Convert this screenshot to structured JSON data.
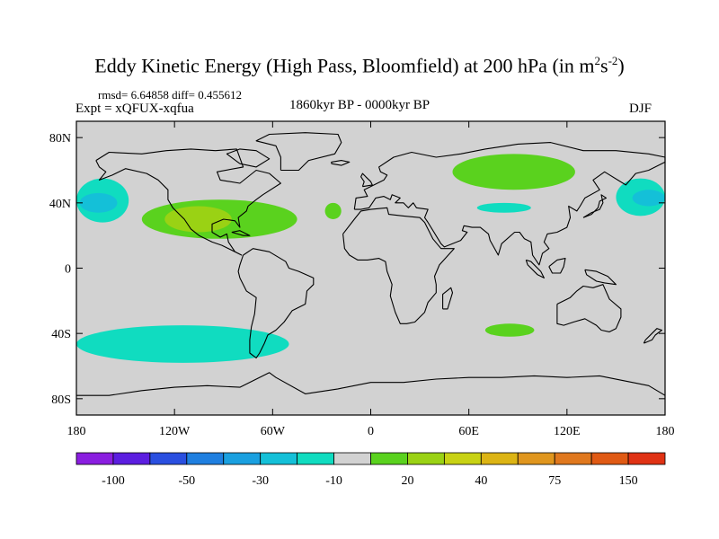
{
  "header": {
    "title_main": "Eddy Kinetic Energy (High Pass, Bloomfield) at 200 hPa (in m",
    "title_sup1": "2",
    "title_mid": "s",
    "title_sup2": "-2",
    "title_end": ")",
    "stats": "rmsd= 6.64858 diff= 0.455612",
    "expt": "Expt = xQFUX-xqfua",
    "period": "1860kyr BP - 0000kyr BP",
    "season": "DJF"
  },
  "chart_data": {
    "type": "heatmap",
    "projection": "cylindrical equidistant",
    "variable": "Eddy Kinetic Energy difference",
    "level": "200 hPa",
    "units": "m2s-2",
    "xlim": [
      -180,
      180
    ],
    "ylim": [
      -90,
      90
    ],
    "x_ticks": [
      {
        "value": -180,
        "label": "180"
      },
      {
        "value": -120,
        "label": "120W"
      },
      {
        "value": -60,
        "label": "60W"
      },
      {
        "value": 0,
        "label": "0"
      },
      {
        "value": 60,
        "label": "60E"
      },
      {
        "value": 120,
        "label": "120E"
      },
      {
        "value": 180,
        "label": "180"
      }
    ],
    "y_ticks": [
      {
        "value": 80,
        "label": "80N"
      },
      {
        "value": 40,
        "label": "40N"
      },
      {
        "value": 0,
        "label": "0"
      },
      {
        "value": -40,
        "label": "40S"
      },
      {
        "value": -80,
        "label": "80S"
      }
    ],
    "colorbar": {
      "colors": [
        "#8a1ee0",
        "#5c1ee0",
        "#2a4fe0",
        "#1f7fe0",
        "#1aa0e0",
        "#14c0d8",
        "#10dcc0",
        "#d2d2d2",
        "#5ad21e",
        "#9ad214",
        "#c8d214",
        "#dcb414",
        "#e0961e",
        "#e0781e",
        "#e05a14",
        "#e03214"
      ],
      "labels": [
        {
          "after_bin": 1,
          "text": "-100"
        },
        {
          "after_bin": 3,
          "text": "-50"
        },
        {
          "after_bin": 5,
          "text": "-30"
        },
        {
          "after_bin": 7,
          "text": "-10"
        },
        {
          "after_bin": 9,
          "text": "20"
        },
        {
          "after_bin": 11,
          "text": "40"
        },
        {
          "after_bin": 13,
          "text": "75"
        },
        {
          "after_bin": 15,
          "text": "150"
        }
      ]
    },
    "regions": [
      {
        "name": "north-pacific-west",
        "lon": [
          -180,
          -148
        ],
        "lat": [
          28,
          55
        ],
        "level": "-20 to -10",
        "color": "#10dcc0"
      },
      {
        "name": "north-pacific-west-core",
        "lon": [
          -178,
          -155
        ],
        "lat": [
          34,
          46
        ],
        "level": "-30 to -20",
        "color": "#14c0d8"
      },
      {
        "name": "north-america-band",
        "lon": [
          -140,
          -45
        ],
        "lat": [
          18,
          42
        ],
        "level": "10 to 20",
        "color": "#5ad21e"
      },
      {
        "name": "north-america-band-core",
        "lon": [
          -126,
          -85
        ],
        "lat": [
          22,
          38
        ],
        "level": "20 to 30",
        "color": "#9ad214"
      },
      {
        "name": "north-atlantic-small",
        "lon": [
          -28,
          -18
        ],
        "lat": [
          30,
          40
        ],
        "level": "10 to 20",
        "color": "#5ad21e"
      },
      {
        "name": "asia-jet",
        "lon": [
          50,
          125
        ],
        "lat": [
          48,
          70
        ],
        "level": "10 to 20",
        "color": "#5ad21e"
      },
      {
        "name": "central-asia-small",
        "lon": [
          65,
          98
        ],
        "lat": [
          34,
          40
        ],
        "level": "-20 to -10",
        "color": "#10dcc0"
      },
      {
        "name": "north-pacific-east",
        "lon": [
          150,
          180
        ],
        "lat": [
          32,
          55
        ],
        "level": "-20 to -10",
        "color": "#10dcc0"
      },
      {
        "name": "north-pacific-east-core",
        "lon": [
          160,
          180
        ],
        "lat": [
          38,
          48
        ],
        "level": "-30 to -20",
        "color": "#14c0d8"
      },
      {
        "name": "south-pacific",
        "lon": [
          -180,
          -50
        ],
        "lat": [
          -58,
          -35
        ],
        "level": "-20 to -10",
        "color": "#10dcc0"
      },
      {
        "name": "south-indian",
        "lon": [
          70,
          100
        ],
        "lat": [
          -42,
          -34
        ],
        "level": "10 to 20",
        "color": "#5ad21e"
      }
    ]
  }
}
